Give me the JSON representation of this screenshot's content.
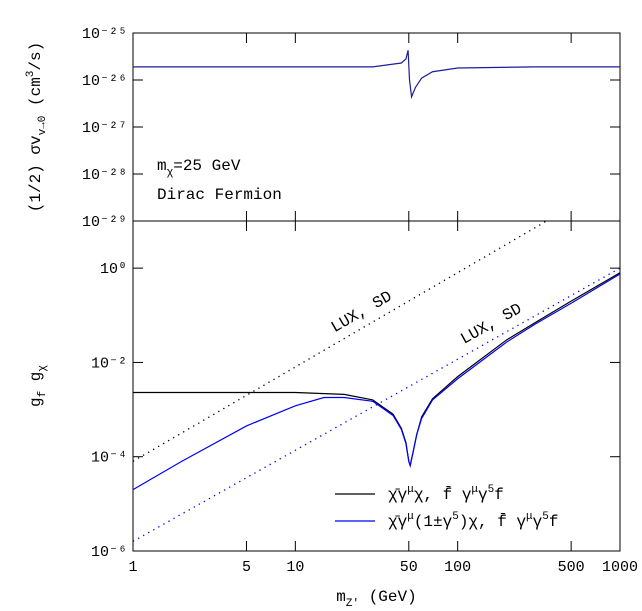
{
  "chart_data": [
    {
      "type": "line",
      "ylabel": [
        {
          "text": "(1/2) σv"
        },
        {
          "text": "v→0",
          "script": "sub"
        },
        {
          "text": " (cm"
        },
        {
          "text": "3",
          "script": "sup"
        },
        {
          "text": "/s)"
        }
      ],
      "annotations": [
        [
          {
            "text": "m"
          },
          {
            "text": "χ",
            "script": "sub"
          },
          {
            "text": "=25 GeV"
          }
        ],
        [
          {
            "text": "Dirac Fermion"
          }
        ]
      ],
      "log_x": true,
      "log_y": true,
      "xlim": [
        1,
        1000
      ],
      "ylim": [
        1e-29,
        1e-25
      ],
      "yticks": [
        {
          "value": 1e-29,
          "label": "10⁻²⁹"
        },
        {
          "value": 1e-28,
          "label": "10⁻²⁸"
        },
        {
          "value": 1e-27,
          "label": "10⁻²⁷"
        },
        {
          "value": 1e-26,
          "label": "10⁻²⁶"
        },
        {
          "value": 1e-25,
          "label": "10⁻²⁵"
        }
      ],
      "series": [
        {
          "color": "#1c1c9a",
          "x": [
            1,
            10,
            30,
            45,
            48,
            49.5,
            50.5,
            52,
            55,
            60,
            70,
            100,
            300,
            1000
          ],
          "values": [
            1.9e-26,
            1.9e-26,
            1.9e-26,
            2.3e-26,
            2.8e-26,
            4.3e-26,
            1e-26,
            4.4e-27,
            7e-27,
            1.1e-26,
            1.5e-26,
            1.8e-26,
            1.9e-26,
            1.9e-26
          ]
        }
      ]
    },
    {
      "type": "line",
      "xlabel": [
        {
          "text": "m"
        },
        {
          "text": "Z'",
          "script": "sub"
        },
        {
          "text": " (GeV)"
        }
      ],
      "ylabel": [
        {
          "text": "g"
        },
        {
          "text": "f",
          "script": "sub"
        },
        {
          "text": "  g"
        },
        {
          "text": "χ",
          "script": "sub"
        }
      ],
      "log_x": true,
      "log_y": true,
      "xlim": [
        1,
        1000
      ],
      "ylim": [
        1e-06,
        10
      ],
      "xticks": [
        1,
        5,
        10,
        50,
        100,
        500,
        1000
      ],
      "yticks": [
        {
          "value": 1e-06,
          "label": "10⁻⁶"
        },
        {
          "value": 0.0001,
          "label": "10⁻⁴"
        },
        {
          "value": 0.01,
          "label": "10⁻²"
        },
        {
          "value": 1,
          "label": "10⁰"
        }
      ],
      "legend": "lower right",
      "series": [
        {
          "name": [
            {
              "text": "χ̄γ"
            },
            {
              "text": "μ",
              "script": "sup"
            },
            {
              "text": "χ, f̄ γ"
            },
            {
              "text": "μ",
              "script": "sup"
            },
            {
              "text": "γ"
            },
            {
              "text": "5",
              "script": "sup"
            },
            {
              "text": "f"
            }
          ],
          "color": "#000000",
          "x": [
            1,
            10,
            20,
            30,
            40,
            45,
            48,
            50,
            51,
            53,
            56,
            60,
            70,
            100,
            200,
            300,
            500,
            1000
          ],
          "values": [
            0.0023,
            0.0023,
            0.0021,
            0.0016,
            0.0008,
            0.0004,
            0.0002,
            8e-05,
            6.5e-05,
            0.00012,
            0.0003,
            0.0007,
            0.0017,
            0.005,
            0.03,
            0.07,
            0.2,
            0.8
          ]
        },
        {
          "name": [
            {
              "text": "χ̄γ"
            },
            {
              "text": "μ",
              "script": "sup"
            },
            {
              "text": "(1±γ"
            },
            {
              "text": "5",
              "script": "sup"
            },
            {
              "text": ")χ, f̄ γ"
            },
            {
              "text": "μ",
              "script": "sup"
            },
            {
              "text": "γ"
            },
            {
              "text": "5",
              "script": "sup"
            },
            {
              "text": "f"
            }
          ],
          "color": "#0000ff",
          "x": [
            1,
            2,
            5,
            10,
            15,
            20,
            30,
            40,
            45,
            48,
            50,
            51,
            53,
            56,
            60,
            70,
            100,
            200,
            300,
            500,
            1000
          ],
          "values": [
            2e-05,
            8e-05,
            0.00045,
            0.0012,
            0.0018,
            0.0018,
            0.0015,
            0.00075,
            0.00038,
            0.00019,
            8e-05,
            6.5e-05,
            0.00012,
            0.0003,
            0.00065,
            0.0016,
            0.0045,
            0.027,
            0.065,
            0.18,
            0.75
          ]
        }
      ],
      "limits": [
        {
          "label": "LUX, SD",
          "color": "#000000",
          "x": [
            1,
            353
          ],
          "values": [
            8e-05,
            10
          ]
        },
        {
          "label": "LUX, SD",
          "color": "#0000ff",
          "x": [
            1,
            1000
          ],
          "values": [
            1.6e-06,
            1
          ]
        }
      ]
    }
  ]
}
